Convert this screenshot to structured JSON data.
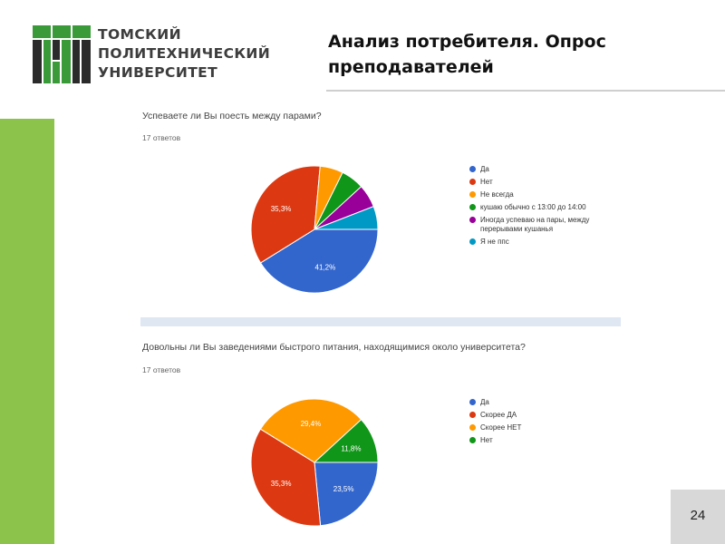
{
  "header": {
    "university_lines": [
      "ТОМСКИЙ",
      "ПОЛИТЕХНИЧЕСКИЙ",
      "УНИВЕРСИТЕТ"
    ],
    "slide_title": "Анализ потребителя. Опрос преподавателей",
    "page_number": "24"
  },
  "colors": {
    "green_accent": "#8cc34a",
    "logo_green": "#3a9a3a",
    "logo_dark": "#2b2b2b"
  },
  "chart_data": [
    {
      "type": "pie",
      "title": "Успеваете ли Вы поесть между парами?",
      "subtitle": "17 ответов",
      "categories": [
        "Да",
        "Нет",
        "Не всегда",
        "кушаю обычно с 13:00 до 14:00",
        "Иногда успеваю на пары, между перерывами кушанья",
        "Я не ппс"
      ],
      "values": [
        41.2,
        35.3,
        5.9,
        5.9,
        5.9,
        5.9
      ],
      "labels": [
        "41,2%",
        "35,3%",
        "",
        "",
        "",
        ""
      ],
      "colors": [
        "#3366cc",
        "#dc3912",
        "#ff9900",
        "#109618",
        "#990099",
        "#0099c6"
      ],
      "legend": "right"
    },
    {
      "type": "pie",
      "title": "Довольны ли Вы заведениями быстрого питания, находящимися около университета?",
      "subtitle": "17 ответов",
      "categories": [
        "Да",
        "Скорее ДА",
        "Скорее НЕТ",
        "Нет"
      ],
      "values": [
        23.5,
        35.3,
        29.4,
        11.8
      ],
      "labels": [
        "23,5%",
        "35,3%",
        "29,4%",
        "11,8%"
      ],
      "colors": [
        "#3366cc",
        "#dc3912",
        "#ff9900",
        "#109618"
      ],
      "legend": "right"
    }
  ]
}
